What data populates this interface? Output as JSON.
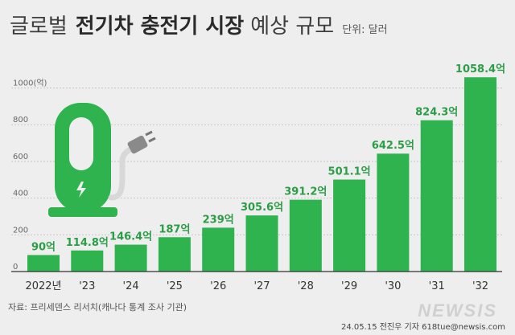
{
  "title": {
    "part1": "글로벌",
    "part2": "전기차 충전기 시장",
    "part3": "예상 규모",
    "unit": "단위: 달러"
  },
  "chart_data": {
    "type": "bar",
    "title": "글로벌 전기차 충전기 시장 예상 규모",
    "unit": "단위: 달러",
    "categories": [
      "2022년",
      "'23",
      "'24",
      "'25",
      "'26",
      "'27",
      "'28",
      "'29",
      "'30",
      "'31",
      "'32"
    ],
    "values": [
      90,
      114.8,
      146.4,
      187,
      239,
      305.6,
      391.2,
      501.1,
      642.5,
      824.3,
      1058.4
    ],
    "value_labels": [
      "90억",
      "114.8억",
      "146.4억",
      "187억",
      "239억",
      "305.6억",
      "391.2억",
      "501.1억",
      "642.5억",
      "824.3억",
      "1058.4억"
    ],
    "yticks": [
      0,
      200,
      400,
      600,
      800,
      1000
    ],
    "ytick_labels": [
      "0",
      "200",
      "400",
      "600",
      "800",
      "1000(억)"
    ],
    "ylim": [
      0,
      1160
    ],
    "grid": true,
    "bar_color": "#2eb34f"
  },
  "footer": {
    "source": "자료: 프리세덴스 리서치(캐나다 통계 조사 기관)",
    "credit": "24.05.15 전진우 기자 618tue@newsis.com",
    "logo": "NEWSIS"
  }
}
